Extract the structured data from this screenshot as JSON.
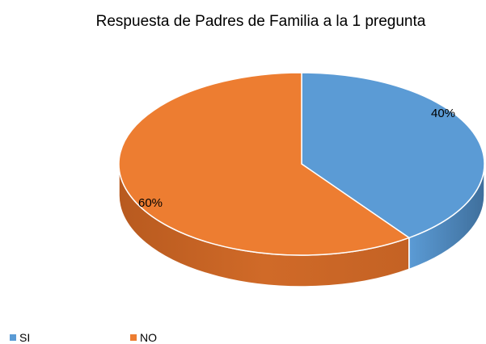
{
  "chart_data": {
    "type": "pie",
    "title": "Respuesta de Padres de Familia a la 1 pregunta",
    "categories": [
      "SI",
      "NO"
    ],
    "values": [
      40,
      60
    ],
    "data_labels": [
      "40%",
      "60%"
    ],
    "colors": [
      "#5B9BD5",
      "#ED7D31"
    ],
    "legend_position": "bottom-left",
    "style": "3d"
  }
}
